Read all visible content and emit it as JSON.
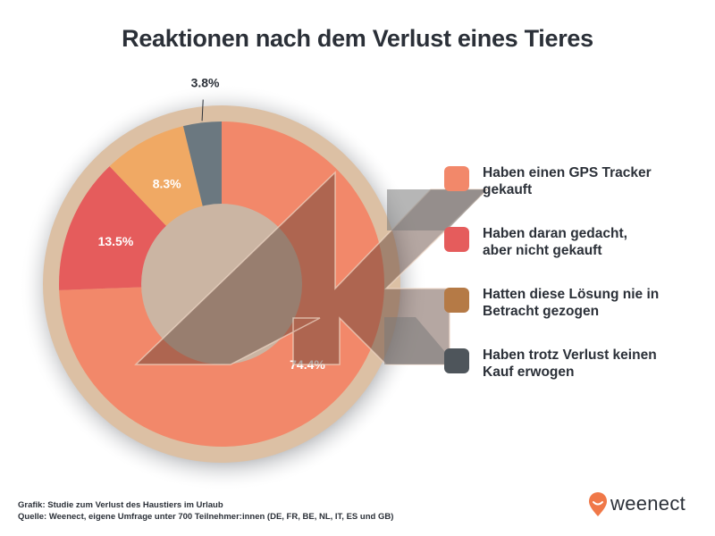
{
  "title": "Reaktionen nach dem Verlust eines Tieres",
  "chart_data": {
    "type": "pie",
    "title": "Reaktionen nach dem Verlust eines Tieres",
    "donut": true,
    "legend_position": "right",
    "slices": [
      {
        "label": "Haben einen GPS Tracker gekauft",
        "value": 74.4,
        "value_label": "74.4%",
        "color": "#f2886a"
      },
      {
        "label": "Haben daran gedacht, aber nicht gekauft",
        "value": 13.5,
        "value_label": "13.5%",
        "color": "#e55c5c"
      },
      {
        "label": "Hatten diese Lösung nie in Betracht gezogen",
        "value": 8.3,
        "value_label": "8.3%",
        "color": "#f0a964"
      },
      {
        "label": "Haben trotz Verlust keinen Kauf erwogen",
        "value": 3.8,
        "value_label": "3.8%",
        "color": "#6b7880"
      }
    ]
  },
  "legend": [
    {
      "line1": "Haben einen GPS Tracker",
      "line2": "gekauft",
      "color": "#f2886a"
    },
    {
      "line1": "Haben daran gedacht,",
      "line2": "aber nicht gekauft",
      "color": "#e55c5c"
    },
    {
      "line1": "Hatten diese Lösung nie in",
      "line2": "Betracht gezogen",
      "color": "#f0a964"
    },
    {
      "line1": "Haben trotz Verlust keinen",
      "line2": "Kauf erwogen",
      "color": "#6b7880"
    }
  ],
  "footer": {
    "line1": "Grafik: Studie zum Verlust des Haustiers im Urlaub",
    "line2": "Quelle: Weenect, eigene Umfrage unter 700 Teilnehmer:innen (DE, FR, BE, NL, IT, ES und GB)"
  },
  "logo": {
    "text": "weenect",
    "color": "#f07848"
  }
}
